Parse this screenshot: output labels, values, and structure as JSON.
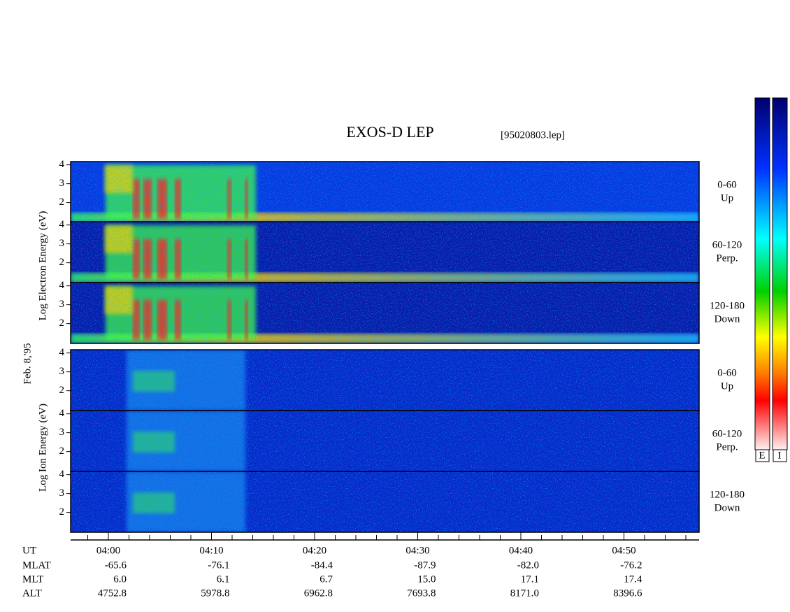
{
  "title": "EXOS-D LEP",
  "file": "[95020803.lep]",
  "date_label": "Feb. 8,'95",
  "electron_axis_label": "Log  Electron  Energy (eV)",
  "ion_axis_label": "Log  Ion  Energy (eV)",
  "panels": [
    {
      "group": "electron",
      "yticks": [
        2,
        3,
        4
      ],
      "pitch_angle": "0-60",
      "direction": "Up"
    },
    {
      "group": "electron",
      "yticks": [
        2,
        3,
        4
      ],
      "pitch_angle": "60-120",
      "direction": "Perp."
    },
    {
      "group": "electron",
      "yticks": [
        2,
        3,
        4
      ],
      "pitch_angle": "120-180",
      "direction": "Down"
    },
    {
      "group": "ion",
      "yticks": [
        2,
        3,
        4
      ],
      "pitch_angle": "0-60",
      "direction": "Up"
    },
    {
      "group": "ion",
      "yticks": [
        2,
        3,
        4
      ],
      "pitch_angle": "60-120",
      "direction": "Perp."
    },
    {
      "group": "ion",
      "yticks": [
        2,
        3,
        4
      ],
      "pitch_angle": "120-180",
      "direction": "Down"
    }
  ],
  "colorbar_labels": [
    "E",
    "I"
  ],
  "orbit": [
    {
      "label": "UT",
      "values": [
        "04:00",
        "04:10",
        "04:20",
        "04:30",
        "04:40",
        "04:50"
      ]
    },
    {
      "label": "MLAT",
      "values": [
        "-65.6",
        "-76.1",
        "-84.4",
        "-87.9",
        "-82.0",
        "-76.2"
      ]
    },
    {
      "label": "MLT",
      "values": [
        "6.0",
        "6.1",
        "6.7",
        "15.0",
        "17.1",
        "17.4"
      ]
    },
    {
      "label": "ALT",
      "values": [
        "4752.8",
        "5978.8",
        "6962.8",
        "7693.8",
        "8171.0",
        "8396.6"
      ]
    }
  ]
}
